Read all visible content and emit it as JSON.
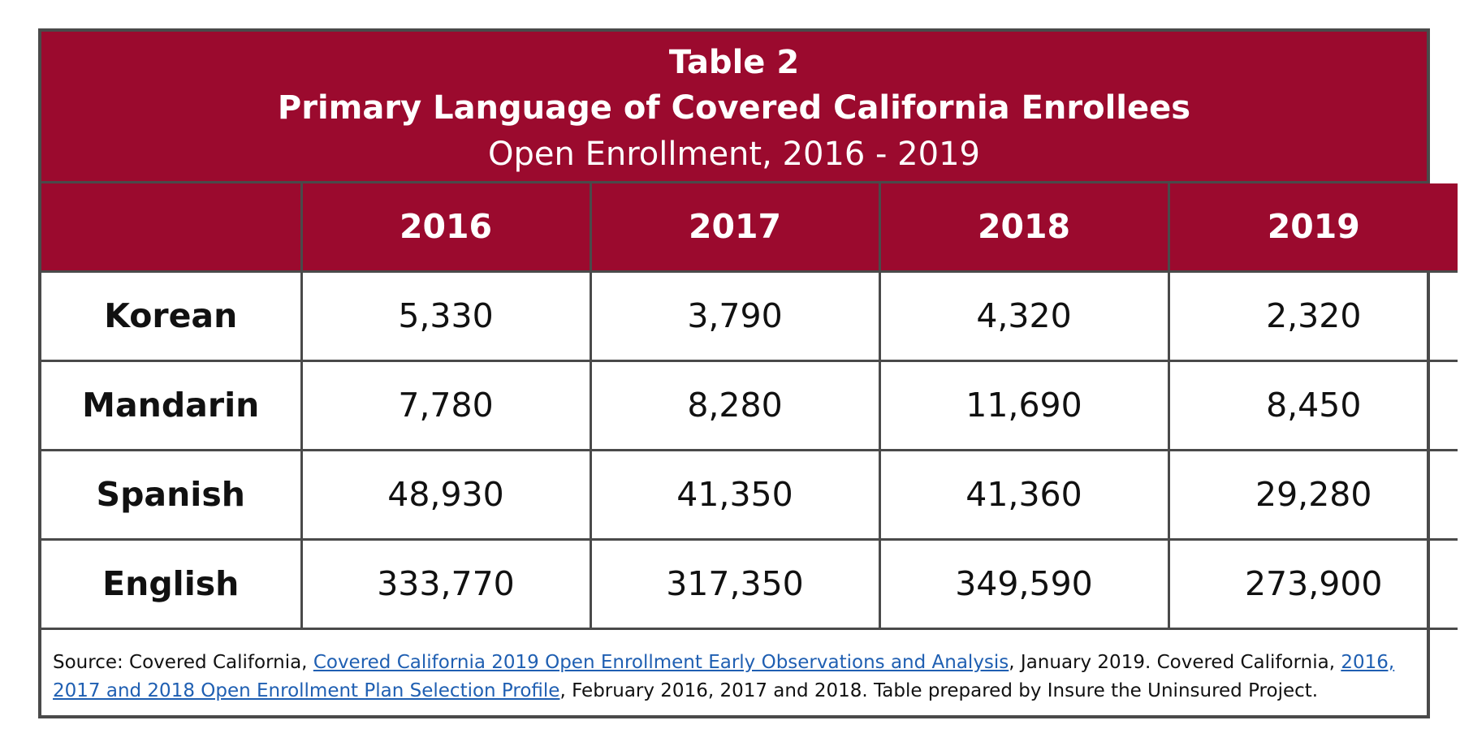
{
  "title": {
    "line1": "Table 2",
    "line2": "Primary Language of Covered California Enrollees",
    "line3": "Open Enrollment, 2016 - 2019"
  },
  "table": {
    "corner": "",
    "years": [
      "2016",
      "2017",
      "2018",
      "2019"
    ],
    "rows": [
      {
        "label": "Korean",
        "values": [
          "5,330",
          "3,790",
          "4,320",
          "2,320"
        ]
      },
      {
        "label": "Mandarin",
        "values": [
          "7,780",
          "8,280",
          "11,690",
          "8,450"
        ]
      },
      {
        "label": "Spanish",
        "values": [
          "48,930",
          "41,350",
          "41,360",
          "29,280"
        ]
      },
      {
        "label": "English",
        "values": [
          "333,770",
          "317,350",
          "349,590",
          "273,900"
        ]
      }
    ]
  },
  "source": {
    "prefix": "Source: Covered California, ",
    "link1": "Covered California 2019 Open Enrollment Early Observations and Analysis",
    "middle": ", January 2019. Covered California, ",
    "link2": "2016, 2017 and 2018 Open Enrollment Plan Selection Profile",
    "suffix": ", February 2016, 2017 and 2018. Table prepared by Insure the Uninsured Project."
  },
  "colors": {
    "header_bg": "#9b0a2e",
    "border": "#4a4a4a",
    "link": "#1f5fb2"
  }
}
